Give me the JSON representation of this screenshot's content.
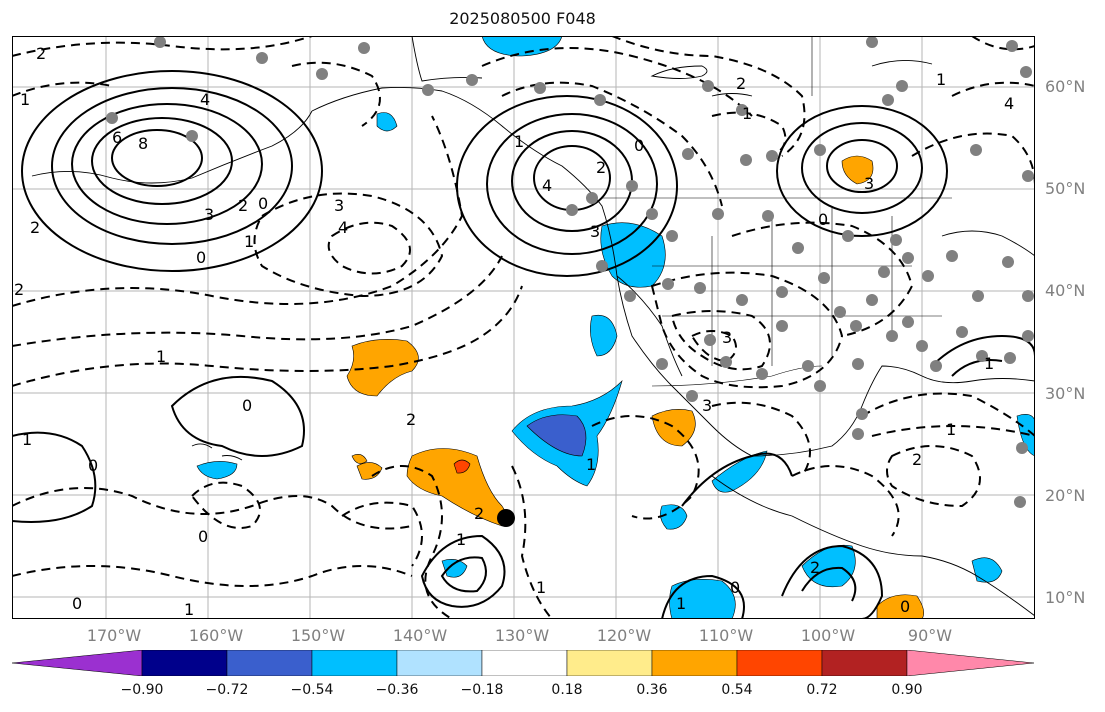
{
  "title": "2025080500 F048",
  "lat_labels": [
    "60°N",
    "50°N",
    "40°N",
    "30°N",
    "20°N",
    "10°N"
  ],
  "lon_labels": [
    "170°W",
    "160°W",
    "150°W",
    "140°W",
    "130°W",
    "120°W",
    "110°W",
    "100°W",
    "90°W"
  ],
  "colorbar": {
    "ticks": [
      "−0.90",
      "−0.72",
      "−0.54",
      "−0.36",
      "−0.18",
      "0.18",
      "0.36",
      "0.54",
      "0.72",
      "0.90"
    ],
    "colors": [
      "#9b30d0",
      "#00008b",
      "#3a5fcd",
      "#00bfff",
      "#b0e2ff",
      "#ffffff",
      "#ffec8b",
      "#ffa500",
      "#ff4500",
      "#b22222",
      "#ff88aa"
    ]
  },
  "contour_labels": [
    "2",
    "1",
    "4",
    "6",
    "8",
    "3",
    "2",
    "0",
    "1",
    "2",
    "3",
    "4",
    "0",
    "1",
    "2",
    "3",
    "4",
    "1",
    "2",
    "0",
    "1",
    "2",
    "4",
    "3",
    "0",
    "1",
    "3",
    "0",
    "1",
    "2",
    "0",
    "1",
    "0",
    "1",
    "2",
    "1",
    "0",
    "1",
    "1",
    "2",
    "0",
    "1",
    "2",
    "3",
    "1",
    "0"
  ]
}
